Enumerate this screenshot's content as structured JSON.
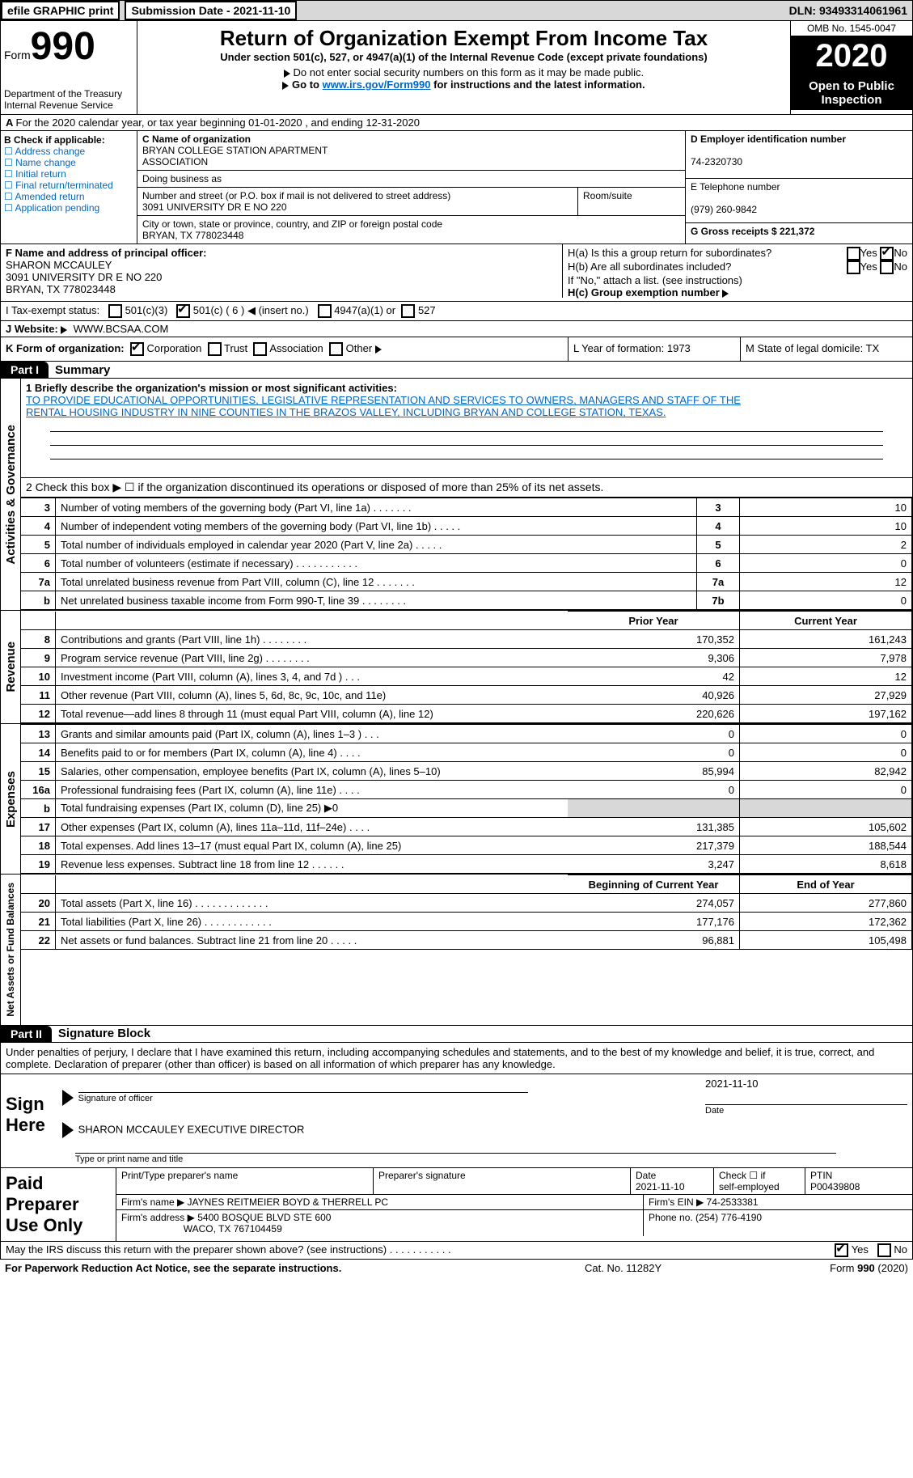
{
  "topbar": {
    "efile": "efile GRAPHIC print",
    "submission_label": "Submission Date - 2021-11-10",
    "dln_label": "DLN: 93493314061961"
  },
  "header": {
    "form_label": "Form",
    "form_number": "990",
    "dept1": "Department of the Treasury",
    "dept2": "Internal Revenue Service",
    "title": "Return of Organization Exempt From Income Tax",
    "subtitle": "Under section 501(c), 527, or 4947(a)(1) of the Internal Revenue Code (except private foundations)",
    "note1": "Do not enter social security numbers on this form as it may be made public.",
    "note2_pre": "Go to ",
    "note2_link": "www.irs.gov/Form990",
    "note2_post": " for instructions and the latest information.",
    "omb": "OMB No. 1545-0047",
    "year": "2020",
    "open_public1": "Open to Public",
    "open_public2": "Inspection"
  },
  "line_a": "For the 2020 calendar year, or tax year beginning 01-01-2020     , and ending 12-31-2020",
  "section_b": {
    "label": "B Check if applicable:",
    "opts": [
      "Address change",
      "Name change",
      "Initial return",
      "Final return/terminated",
      "Amended return",
      "Application pending"
    ],
    "c_label": "C Name of organization",
    "org1": "BRYAN COLLEGE STATION APARTMENT",
    "org2": "ASSOCIATION",
    "dba": "Doing business as",
    "addr_label": "Number and street (or P.O. box if mail is not delivered to street address)",
    "room_label": "Room/suite",
    "addr": "3091 UNIVERSITY DR E NO 220",
    "city_label": "City or town, state or province, country, and ZIP or foreign postal code",
    "city": "BRYAN, TX  778023448",
    "d_label": "D Employer identification number",
    "ein": "74-2320730",
    "e_label": "E Telephone number",
    "phone": "(979) 260-9842",
    "g_label": "G Gross receipts $ 221,372"
  },
  "section_f": {
    "f_label": "F  Name and address of principal officer:",
    "name": "SHARON MCCAULEY",
    "addr1": "3091 UNIVERSITY DR E NO 220",
    "addr2": "BRYAN, TX  778023448",
    "ha_label": "H(a)  Is this a group return for subordinates?",
    "hb_label": "H(b)  Are all subordinates included?",
    "hb_note": "If \"No,\" attach a list. (see instructions)",
    "hc_label": "H(c)  Group exemption number",
    "yes": "Yes",
    "no": "No"
  },
  "section_i": {
    "i_label": "I     Tax-exempt status:",
    "c3": "501(c)(3)",
    "c": "501(c) ( 6 )",
    "insert": "(insert no.)",
    "a4947": "4947(a)(1) or",
    "s527": "527"
  },
  "section_j": {
    "label": "J     Website:",
    "url": "WWW.BCSAA.COM"
  },
  "section_k": {
    "label": "K Form of organization:",
    "corp": "Corporation",
    "trust": "Trust",
    "assoc": "Association",
    "other": "Other",
    "l_label": "L Year of formation: 1973",
    "m_label": "M State of legal domicile: TX"
  },
  "part1": {
    "tab": "Part I",
    "title": "Summary",
    "q1_label": "1  Briefly describe the organization's mission or most significant activities:",
    "mission1": "TO PROVIDE EDUCATIONAL OPPORTUNITIES, LEGISLATIVE REPRESENTATION AND SERVICES TO OWNERS, MANAGERS AND STAFF OF THE",
    "mission2": "RENTAL HOUSING INDUSTRY IN NINE COUNTIES IN THE BRAZOS VALLEY, INCLUDING BRYAN AND COLLEGE STATION, TEXAS.",
    "q2": "2    Check this box ▶ ☐  if the organization discontinued its operations or disposed of more than 25% of its net assets.",
    "vert_gov": "Activities & Governance",
    "vert_rev": "Revenue",
    "vert_exp": "Expenses",
    "vert_na": "Net Assets or Fund Balances",
    "hdr_prior": "Prior Year",
    "hdr_curr": "Current Year",
    "hdr_boy": "Beginning of Current Year",
    "hdr_eoy": "End of Year",
    "rows_gov": [
      {
        "n": "3",
        "d": "Number of voting members of the governing body (Part VI, line 1a)   .    .    .    .    .    .    .",
        "k": "3",
        "v": "10"
      },
      {
        "n": "4",
        "d": "Number of independent voting members of the governing body (Part VI, line 1b)  .    .    .    .    .",
        "k": "4",
        "v": "10"
      },
      {
        "n": "5",
        "d": "Total number of individuals employed in calendar year 2020 (Part V, line 2a)   .    .    .    .    .",
        "k": "5",
        "v": "2"
      },
      {
        "n": "6",
        "d": "Total number of volunteers (estimate if necessary)   .    .    .    .    .    .    .    .    .    .    .",
        "k": "6",
        "v": "0"
      },
      {
        "n": "7a",
        "d": "Total unrelated business revenue from Part VIII, column (C), line 12   .    .    .    .    .    .    .",
        "k": "7a",
        "v": "12"
      },
      {
        "n": "b",
        "d": "Net unrelated business taxable income from Form 990-T, line 39   .    .    .    .    .    .    .    .",
        "k": "7b",
        "v": "0"
      }
    ],
    "rows_rev": [
      {
        "n": "8",
        "d": "Contributions and grants (Part VIII, line 1h)   .    .    .    .    .    .    .    .",
        "p": "170,352",
        "c": "161,243"
      },
      {
        "n": "9",
        "d": "Program service revenue (Part VIII, line 2g)   .    .    .    .    .    .    .    .",
        "p": "9,306",
        "c": "7,978"
      },
      {
        "n": "10",
        "d": "Investment income (Part VIII, column (A), lines 3, 4, and 7d )    .    .    .",
        "p": "42",
        "c": "12"
      },
      {
        "n": "11",
        "d": "Other revenue (Part VIII, column (A), lines 5, 6d, 8c, 9c, 10c, and 11e)",
        "p": "40,926",
        "c": "27,929"
      },
      {
        "n": "12",
        "d": "Total revenue—add lines 8 through 11 (must equal Part VIII, column (A), line 12)",
        "p": "220,626",
        "c": "197,162"
      }
    ],
    "rows_exp": [
      {
        "n": "13",
        "d": "Grants and similar amounts paid (Part IX, column (A), lines 1–3 )   .    .    .",
        "p": "0",
        "c": "0"
      },
      {
        "n": "14",
        "d": "Benefits paid to or for members (Part IX, column (A), line 4)   .    .    .    .",
        "p": "0",
        "c": "0"
      },
      {
        "n": "15",
        "d": "Salaries, other compensation, employee benefits (Part IX, column (A), lines 5–10)",
        "p": "85,994",
        "c": "82,942"
      },
      {
        "n": "16a",
        "d": "Professional fundraising fees (Part IX, column (A), line 11e)   .    .    .    .",
        "p": "0",
        "c": "0"
      },
      {
        "n": "b",
        "d": "Total fundraising expenses (Part IX, column (D), line 25) ▶0",
        "p": "grey",
        "c": "grey"
      },
      {
        "n": "17",
        "d": "Other expenses (Part IX, column (A), lines 11a–11d, 11f–24e)   .    .    .    .",
        "p": "131,385",
        "c": "105,602"
      },
      {
        "n": "18",
        "d": "Total expenses. Add lines 13–17 (must equal Part IX, column (A), line 25)",
        "p": "217,379",
        "c": "188,544"
      },
      {
        "n": "19",
        "d": "Revenue less expenses. Subtract line 18 from line 12   .    .    .    .    .    .",
        "p": "3,247",
        "c": "8,618"
      }
    ],
    "rows_na": [
      {
        "n": "20",
        "d": "Total assets (Part X, line 16)   .    .    .    .    .    .    .    .    .    .    .    .    .",
        "p": "274,057",
        "c": "277,860"
      },
      {
        "n": "21",
        "d": "Total liabilities (Part X, line 26)   .    .    .    .    .    .    .    .    .    .    .    .",
        "p": "177,176",
        "c": "172,362"
      },
      {
        "n": "22",
        "d": "Net assets or fund balances. Subtract line 21 from line 20   .    .    .    .    .",
        "p": "96,881",
        "c": "105,498"
      }
    ]
  },
  "part2": {
    "tab": "Part II",
    "title": "Signature Block",
    "pen": "Under penalties of perjury, I declare that I have examined this return, including accompanying schedules and statements, and to the best of my knowledge and belief, it is true, correct, and complete. Declaration of preparer (other than officer) is based on all information of which preparer has any knowledge.",
    "sign_here": "Sign Here",
    "sig_officer": "Signature of officer",
    "sig_date": "2021-11-10",
    "date_lbl": "Date",
    "name_title": "SHARON MCCAULEY  EXECUTIVE DIRECTOR",
    "type_print": "Type or print name and title"
  },
  "prep": {
    "title": "Paid Preparer Use Only",
    "h1": "Print/Type preparer's name",
    "h2": "Preparer's signature",
    "h3": "Date",
    "date": "2021-11-10",
    "h4_a": "Check ☐  if",
    "h4_b": "self-employed",
    "h5": "PTIN",
    "ptin": "P00439808",
    "firm_name_lbl": "Firm's name    ▶",
    "firm_name": "JAYNES REITMEIER BOYD & THERRELL PC",
    "firm_ein_lbl": "Firm's EIN ▶",
    "firm_ein": "74-2533381",
    "firm_addr_lbl": "Firm's address ▶",
    "firm_addr1": "5400 BOSQUE BLVD STE 600",
    "firm_addr2": "WACO, TX  767104459",
    "phone_lbl": "Phone no. (254) 776-4190"
  },
  "discuss": {
    "q": "May the IRS discuss this return with the preparer shown above? (see instructions)    .    .    .    .    .    .    .    .    .    .    .",
    "yes": "Yes",
    "no": "No"
  },
  "footer": {
    "left": "For Paperwork Reduction Act Notice, see the separate instructions.",
    "mid": "Cat. No. 11282Y",
    "right": "Form 990 (2020)"
  }
}
